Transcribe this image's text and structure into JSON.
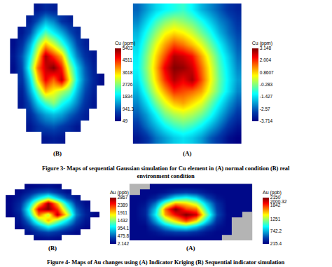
{
  "chart_data": [
    {
      "type": "heatmap",
      "title": "(B)",
      "colorbar_title": "Cu (ppm)",
      "color": "#ffffff",
      "tick_labels": false,
      "zlim": [
        49,
        5403
      ],
      "zticks": [
        5403,
        4511,
        3618,
        2726,
        1834,
        941.3,
        49
      ],
      "z": [
        [
          null,
          null,
          null,
          300,
          500,
          400,
          null,
          null,
          null,
          null,
          null,
          null
        ],
        [
          null,
          null,
          400,
          900,
          1500,
          1200,
          600,
          400,
          null,
          null,
          null,
          null
        ],
        [
          null,
          300,
          800,
          1800,
          2500,
          2000,
          1500,
          900,
          500,
          null,
          null,
          null
        ],
        [
          200,
          600,
          1500,
          2800,
          3800,
          3200,
          2400,
          1600,
          800,
          400,
          null,
          null
        ],
        [
          300,
          900,
          2000,
          3500,
          5200,
          4500,
          3800,
          2200,
          1200,
          600,
          300,
          null
        ],
        [
          200,
          800,
          2400,
          4200,
          5000,
          5400,
          4600,
          3000,
          1800,
          900,
          400,
          null
        ],
        [
          null,
          600,
          1800,
          3600,
          4800,
          4200,
          5100,
          3500,
          2000,
          1000,
          500,
          200
        ],
        [
          null,
          400,
          1400,
          2600,
          3800,
          3400,
          3000,
          2600,
          1600,
          800,
          400,
          null
        ],
        [
          null,
          300,
          900,
          1800,
          2400,
          2800,
          2200,
          1800,
          1200,
          600,
          300,
          null
        ],
        [
          null,
          null,
          500,
          1000,
          1400,
          1600,
          1400,
          1000,
          700,
          400,
          null,
          null
        ],
        [
          null,
          null,
          300,
          600,
          800,
          900,
          700,
          500,
          300,
          null,
          null,
          null
        ],
        [
          null,
          null,
          null,
          null,
          300,
          400,
          300,
          null,
          null,
          null,
          null,
          null
        ]
      ]
    },
    {
      "type": "heatmap",
      "title": "(A)",
      "colorbar_title": "Cu (ppm)",
      "color": "#ffffff",
      "tick_labels": false,
      "zlim": [
        -3.714,
        3.148
      ],
      "zticks": [
        3.148,
        2.004,
        0.8607,
        -0.283,
        -1.427,
        -2.57,
        -3.714
      ],
      "z": [
        [
          -2.5,
          -2.0,
          -1.5,
          -1.2,
          -1.0,
          -0.8,
          -1.2,
          -1.8,
          -2.2,
          -2.6,
          -3.0,
          -3.2
        ],
        [
          -2.2,
          -1.5,
          -0.8,
          -0.3,
          0.0,
          -0.2,
          -0.5,
          -1.0,
          -1.6,
          -2.2,
          -2.6,
          -3.0
        ],
        [
          -1.8,
          -1.0,
          -0.2,
          0.5,
          0.8,
          0.6,
          0.2,
          -0.4,
          -1.0,
          -1.8,
          -2.4,
          -2.8
        ],
        [
          -1.5,
          -0.6,
          0.4,
          1.2,
          1.8,
          1.5,
          1.0,
          0.4,
          -0.4,
          -1.2,
          -2.0,
          -2.6
        ],
        [
          -1.3,
          -0.3,
          0.8,
          1.8,
          2.8,
          2.6,
          2.2,
          1.2,
          0.2,
          -0.8,
          -1.6,
          -2.4
        ],
        [
          -1.2,
          -0.2,
          1.0,
          2.4,
          3.1,
          3.0,
          2.6,
          1.6,
          0.5,
          -0.6,
          -1.4,
          -2.2
        ],
        [
          -1.4,
          -0.4,
          0.8,
          2.0,
          2.8,
          2.4,
          2.9,
          1.8,
          0.6,
          -0.5,
          -1.3,
          -2.0
        ],
        [
          -1.8,
          -0.8,
          0.3,
          1.2,
          2.0,
          1.8,
          1.6,
          1.2,
          0.3,
          -0.6,
          -1.4,
          -2.2
        ],
        [
          -2.2,
          -1.4,
          -0.4,
          0.4,
          1.0,
          1.2,
          0.8,
          0.4,
          -0.4,
          -1.2,
          -2.0,
          -2.6
        ],
        [
          -2.6,
          -2.0,
          -1.2,
          -0.4,
          0.0,
          0.2,
          0.0,
          -0.4,
          -1.0,
          -1.8,
          -2.5,
          -3.0
        ],
        [
          -3.0,
          -2.4,
          -1.8,
          -1.2,
          -0.8,
          -0.6,
          -0.8,
          -1.2,
          -1.8,
          -2.4,
          -3.0,
          -3.4
        ],
        [
          -3.4,
          -3.0,
          -2.4,
          -2.0,
          -1.6,
          -1.4,
          -1.6,
          -2.0,
          -2.6,
          -3.0,
          -3.5,
          -3.7
        ]
      ]
    },
    {
      "type": "heatmap",
      "title": "(B)",
      "colorbar_title": "Au (ppb)",
      "color": "#ffffff",
      "tick_labels": false,
      "zlim": [
        2.142,
        2867
      ],
      "zticks": [
        2867,
        2389,
        1911,
        1432,
        954.1,
        475.8,
        2.142
      ],
      "z": [
        [
          null,
          null,
          40,
          80,
          120,
          60,
          null,
          null,
          null,
          null
        ],
        [
          null,
          60,
          200,
          400,
          500,
          300,
          100,
          null,
          null,
          null
        ],
        [
          30,
          150,
          500,
          1000,
          1400,
          900,
          400,
          120,
          null,
          null
        ],
        [
          50,
          250,
          900,
          1900,
          2800,
          2000,
          1000,
          300,
          80,
          null
        ],
        [
          40,
          300,
          1200,
          2600,
          2867,
          2400,
          1400,
          500,
          150,
          null
        ],
        [
          30,
          200,
          1000,
          2200,
          1600,
          2700,
          1800,
          600,
          200,
          50
        ],
        [
          null,
          120,
          600,
          1400,
          2000,
          1500,
          1000,
          400,
          120,
          null
        ],
        [
          null,
          60,
          300,
          700,
          1100,
          800,
          500,
          200,
          60,
          null
        ],
        [
          null,
          null,
          100,
          300,
          400,
          300,
          150,
          60,
          null,
          null
        ],
        [
          null,
          null,
          null,
          80,
          120,
          80,
          null,
          null,
          null,
          null
        ]
      ]
    },
    {
      "type": "heatmap",
      "title": "(A)",
      "colorbar_title": "Au (ppb)",
      "color": "#b4b4b4",
      "tick_labels": false,
      "zlim": [
        215.4,
        2150
      ],
      "zticks": [
        2150,
        2000.32,
        1842,
        1251,
        742.2,
        215.4
      ],
      "z": [
        [
          null,
          null,
          250,
          250,
          250,
          250,
          250,
          250,
          250,
          250,
          250,
          250
        ],
        [
          null,
          250,
          250,
          300,
          400,
          450,
          400,
          300,
          250,
          250,
          250,
          250
        ],
        [
          250,
          250,
          350,
          600,
          900,
          1000,
          850,
          500,
          300,
          250,
          250,
          250
        ],
        [
          250,
          300,
          600,
          1200,
          1600,
          1500,
          1300,
          800,
          400,
          250,
          250,
          250
        ],
        [
          250,
          350,
          800,
          1700,
          2150,
          1800,
          1700,
          1000,
          450,
          250,
          250,
          250
        ],
        [
          250,
          350,
          900,
          1600,
          1900,
          2150,
          2000,
          1200,
          500,
          260,
          250,
          null
        ],
        [
          250,
          300,
          700,
          1200,
          1500,
          1800,
          1500,
          900,
          400,
          250,
          null,
          null
        ],
        [
          250,
          250,
          450,
          700,
          900,
          1000,
          800,
          500,
          300,
          250,
          null,
          null
        ],
        [
          250,
          250,
          300,
          400,
          450,
          450,
          400,
          300,
          250,
          250,
          null,
          null
        ],
        [
          250,
          250,
          250,
          250,
          250,
          250,
          250,
          250,
          250,
          null,
          null,
          null
        ]
      ]
    }
  ],
  "captions": [
    [
      "Figure 3- Maps of sequential Gaussian simulation for Cu element in (A) normal condition (B) real",
      "environment condition"
    ],
    [
      "Figure 4- Maps of Au changes using (A) Indicator Kriging (B) Sequential indicator simulation"
    ]
  ]
}
